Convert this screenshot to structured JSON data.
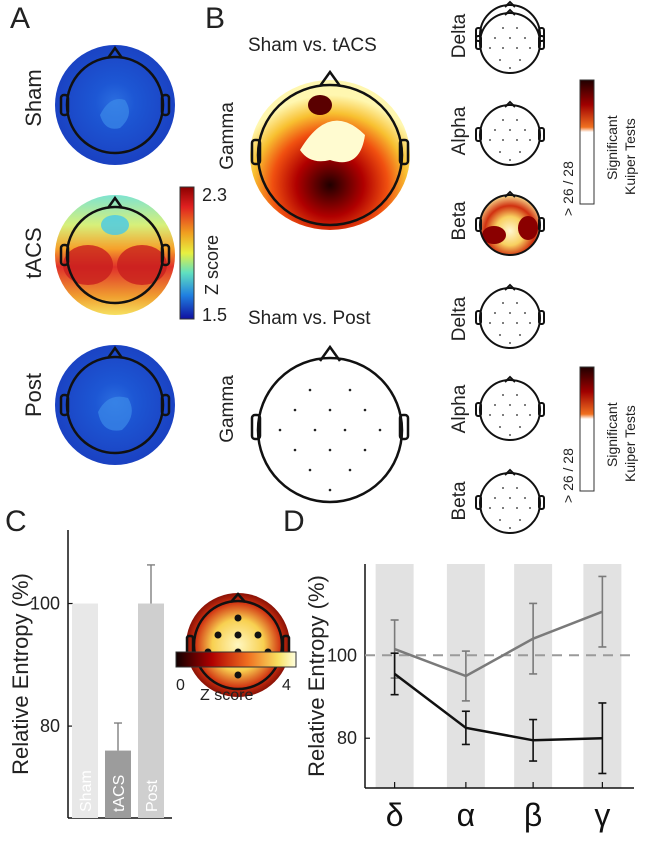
{
  "panels": {
    "a": {
      "letter": "A",
      "rows": [
        {
          "label": "Sham"
        },
        {
          "label": "tACS"
        },
        {
          "label": "Post"
        }
      ],
      "colorbar": {
        "label": "Z score",
        "max": "2.3",
        "min": "1.5"
      }
    },
    "b": {
      "letter": "B",
      "top_title": "Sham vs. tACS",
      "bottom_title": "Sham vs. Post",
      "big_label": "Gamma",
      "bands": [
        "Delta",
        "Alpha",
        "Beta"
      ],
      "legend": {
        "line1": "Significant",
        "line2": "Kuiper Tests",
        "threshold": "> 26 / 28"
      }
    },
    "c": {
      "letter": "C"
    },
    "d": {
      "letter": "D"
    }
  },
  "chart_data": [
    {
      "type": "bar",
      "panel": "C",
      "categories": [
        "Sham",
        "tACS",
        "Post"
      ],
      "values": [
        100,
        76,
        100
      ],
      "errors": [
        0,
        4.5,
        6.3
      ],
      "bar_colors": [
        "#e8e8e8",
        "#9c9c9c",
        "#cfcfcf"
      ],
      "ylabel": "Relative Entropy (%)",
      "yticks": [
        80,
        100
      ],
      "ylim": [
        65,
        112
      ],
      "inset_colorbar": {
        "label": "Z score",
        "min": "0",
        "max": "4"
      }
    },
    {
      "type": "line",
      "panel": "D",
      "categories": [
        "δ",
        "α",
        "β",
        "γ"
      ],
      "series": [
        {
          "values": [
            101.5,
            95,
            104,
            110.5
          ],
          "errors": [
            7,
            6,
            8.5,
            8.5
          ],
          "color": "#7a7a7a"
        },
        {
          "values": [
            95.5,
            82.5,
            79.5,
            80
          ],
          "errors": [
            5,
            4,
            5,
            8.5
          ],
          "color": "#111111"
        }
      ],
      "reference_line": 100,
      "ylabel": "Relative Entropy (%)",
      "yticks": [
        80,
        100
      ],
      "ylim": [
        68,
        122
      ]
    }
  ]
}
